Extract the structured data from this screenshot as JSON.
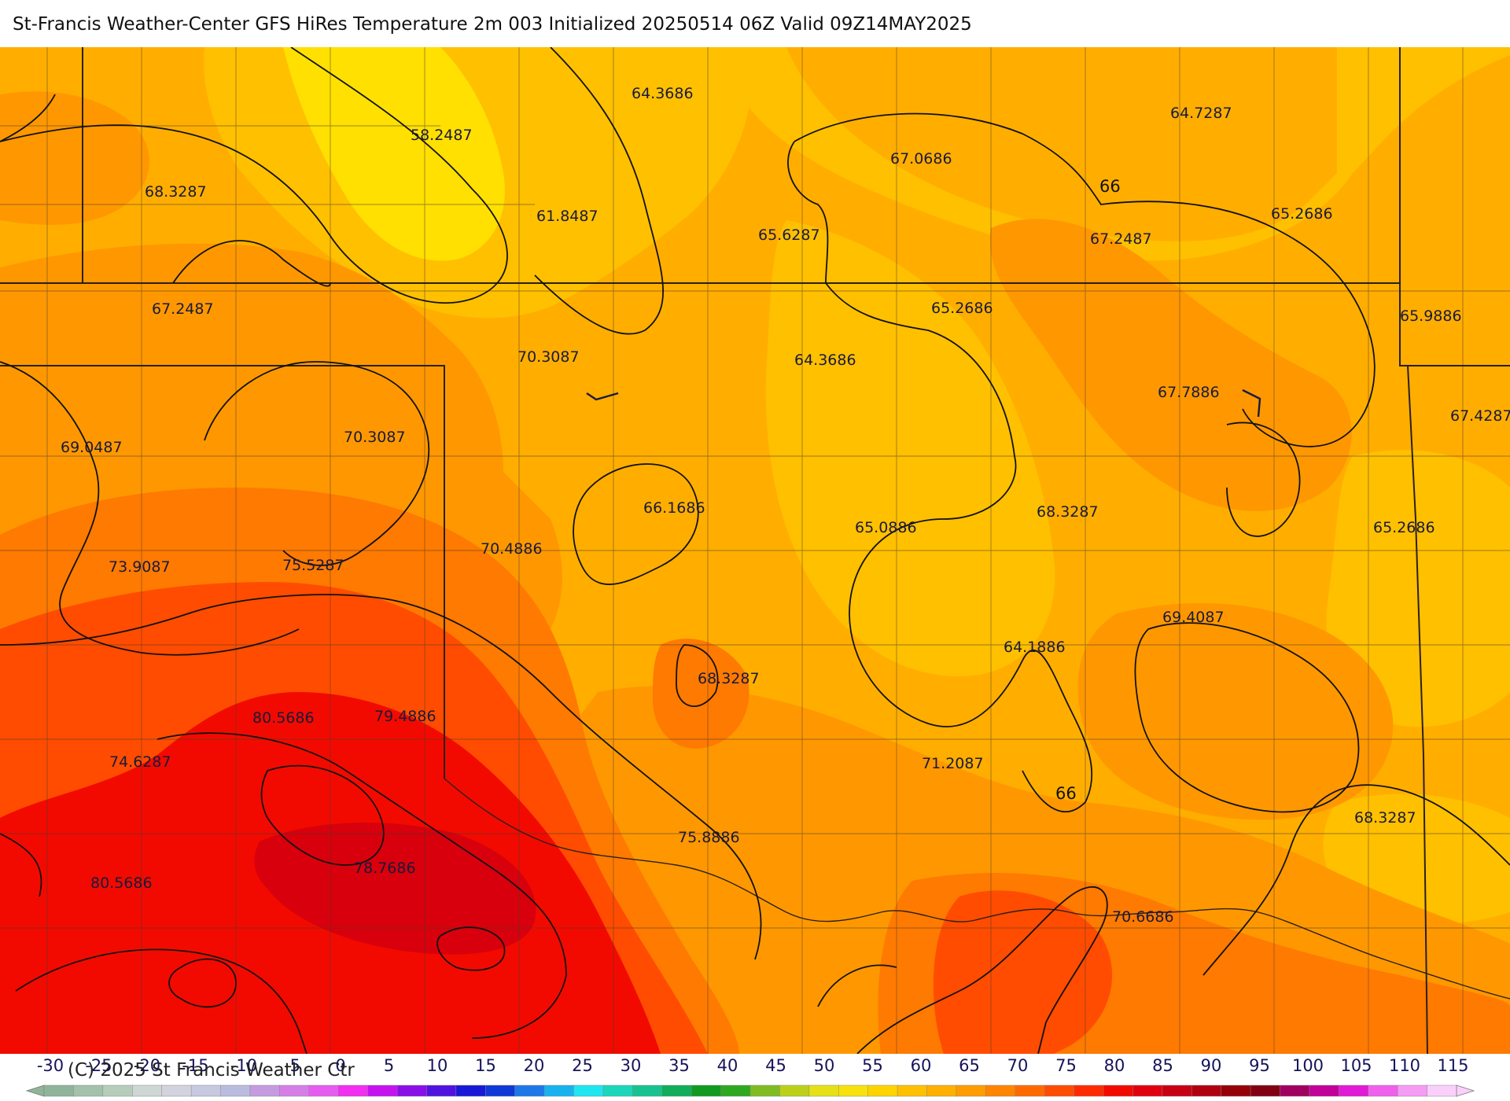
{
  "title": "St-Francis Weather-Center GFS HiRes Temperature 2m  003 Initialized 20250514 06Z Valid 09Z14MAY2025",
  "copyright": "(C) 2025 St Francis Weather Ctr",
  "contour_label": "66",
  "station_values": [
    {
      "id": "v1",
      "text": "58.2487"
    },
    {
      "id": "v2",
      "text": "64.3686"
    },
    {
      "id": "v3",
      "text": "64.7287"
    },
    {
      "id": "v4",
      "text": "68.3287"
    },
    {
      "id": "v5",
      "text": "61.8487"
    },
    {
      "id": "v6",
      "text": "67.0686"
    },
    {
      "id": "v7",
      "text": "65.6287"
    },
    {
      "id": "v8",
      "text": "67.2487"
    },
    {
      "id": "v9",
      "text": "65.2686"
    },
    {
      "id": "v10",
      "text": "67.2487"
    },
    {
      "id": "v11",
      "text": "65.2686"
    },
    {
      "id": "v12",
      "text": "65.9886"
    },
    {
      "id": "v13",
      "text": "70.3087"
    },
    {
      "id": "v14",
      "text": "64.3686"
    },
    {
      "id": "v15",
      "text": "67.7886"
    },
    {
      "id": "v16",
      "text": "69.0487"
    },
    {
      "id": "v17",
      "text": "70.3087"
    },
    {
      "id": "v18",
      "text": "67.4287"
    },
    {
      "id": "v19",
      "text": "66.1686"
    },
    {
      "id": "v20",
      "text": "65.0886"
    },
    {
      "id": "v21",
      "text": "68.3287"
    },
    {
      "id": "v22",
      "text": "65.2686"
    },
    {
      "id": "v23",
      "text": "73.9087"
    },
    {
      "id": "v24",
      "text": "75.5287"
    },
    {
      "id": "v25",
      "text": "70.4886"
    },
    {
      "id": "v26",
      "text": "69.4087"
    },
    {
      "id": "v27",
      "text": "64.1886"
    },
    {
      "id": "v28",
      "text": "68.3287"
    },
    {
      "id": "v29",
      "text": "80.5686"
    },
    {
      "id": "v30",
      "text": "79.4886"
    },
    {
      "id": "v31",
      "text": "74.6287"
    },
    {
      "id": "v32",
      "text": "71.2087"
    },
    {
      "id": "v33",
      "text": "75.8886"
    },
    {
      "id": "v34",
      "text": "68.3287"
    },
    {
      "id": "v35",
      "text": "78.7686"
    },
    {
      "id": "v36",
      "text": "80.5686"
    },
    {
      "id": "v37",
      "text": "70.6686"
    }
  ],
  "legend": {
    "ticks": [
      "-30",
      "-25",
      "-20",
      "-15",
      "-10",
      "-5",
      "0",
      "5",
      "10",
      "15",
      "20",
      "25",
      "30",
      "35",
      "40",
      "45",
      "50",
      "55",
      "60",
      "65",
      "70",
      "75",
      "80",
      "85",
      "90",
      "95",
      "100",
      "105",
      "110",
      "115"
    ],
    "colors": [
      "#8fb49a",
      "#a3c1ab",
      "#b7cdbc",
      "#cdd7d3",
      "#d3d3e0",
      "#c6c9e0",
      "#b9bbdf",
      "#c59be0",
      "#d57fe6",
      "#e75cf0",
      "#f12ef2",
      "#c612ef",
      "#8a0ee8",
      "#5012e0",
      "#1818d8",
      "#1038d6",
      "#1e78e8",
      "#18b2ef",
      "#1ee6f0",
      "#1cd6bc",
      "#16c290",
      "#10ae5a",
      "#109a22",
      "#2ea820",
      "#7fbc22",
      "#bcd01a",
      "#e6e016",
      "#f8e20e",
      "#fed400",
      "#ffc000",
      "#ffb000",
      "#ff9c00",
      "#ff8400",
      "#ff6a00",
      "#ff4c00",
      "#ff2a00",
      "#f20a00",
      "#e00010",
      "#c80014",
      "#b00010",
      "#960008",
      "#820012",
      "#a00060",
      "#c2009a",
      "#e01ad6",
      "#f060ec",
      "#f59cf5",
      "#fad0fb"
    ]
  },
  "colors": {
    "yellow": "#ffe000",
    "light_orange": "#ffc000",
    "orange": "#ffae00",
    "dark_orange": "#ff9800",
    "red_orange": "#ff7a00",
    "orange_red": "#ff4c00",
    "red": "#f20a00",
    "dark_red": "#d8000c",
    "contour": "#111111",
    "border": "#4a3a30"
  }
}
